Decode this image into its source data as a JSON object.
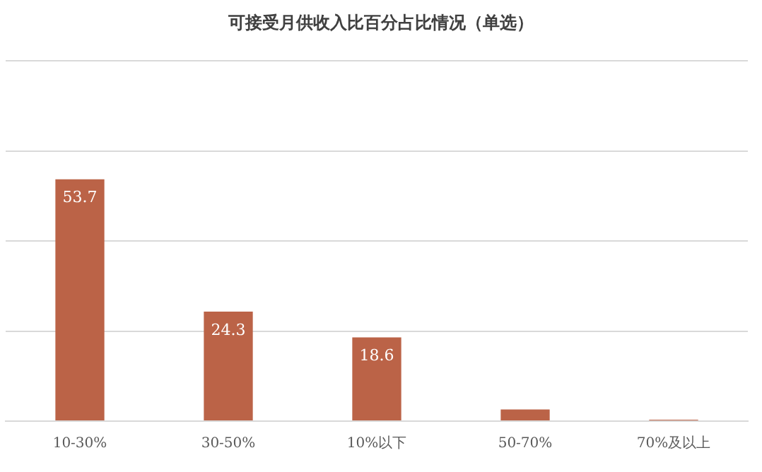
{
  "chart_data": {
    "type": "bar",
    "title": "可接受月供收入比百分占比情况（单选）",
    "categories": [
      "10-30%",
      "30-50%",
      "10%以下",
      "50-70%",
      "70%及以上"
    ],
    "values": [
      53.7,
      24.3,
      18.6,
      2.6,
      0.3
    ],
    "value_labels": [
      "53.7",
      "24.3",
      "18.6",
      null,
      null
    ],
    "color": "#bb6347",
    "ylim": [
      0,
      80
    ],
    "yticks": [
      {
        "value": 0,
        "label": null
      },
      {
        "value": 20,
        "label": null
      },
      {
        "value": 40,
        "label": null
      },
      {
        "value": 60,
        "label": null
      },
      {
        "value": 80,
        "label": null
      }
    ],
    "grid": "y",
    "tick_labels": "x",
    "legend": false
  }
}
